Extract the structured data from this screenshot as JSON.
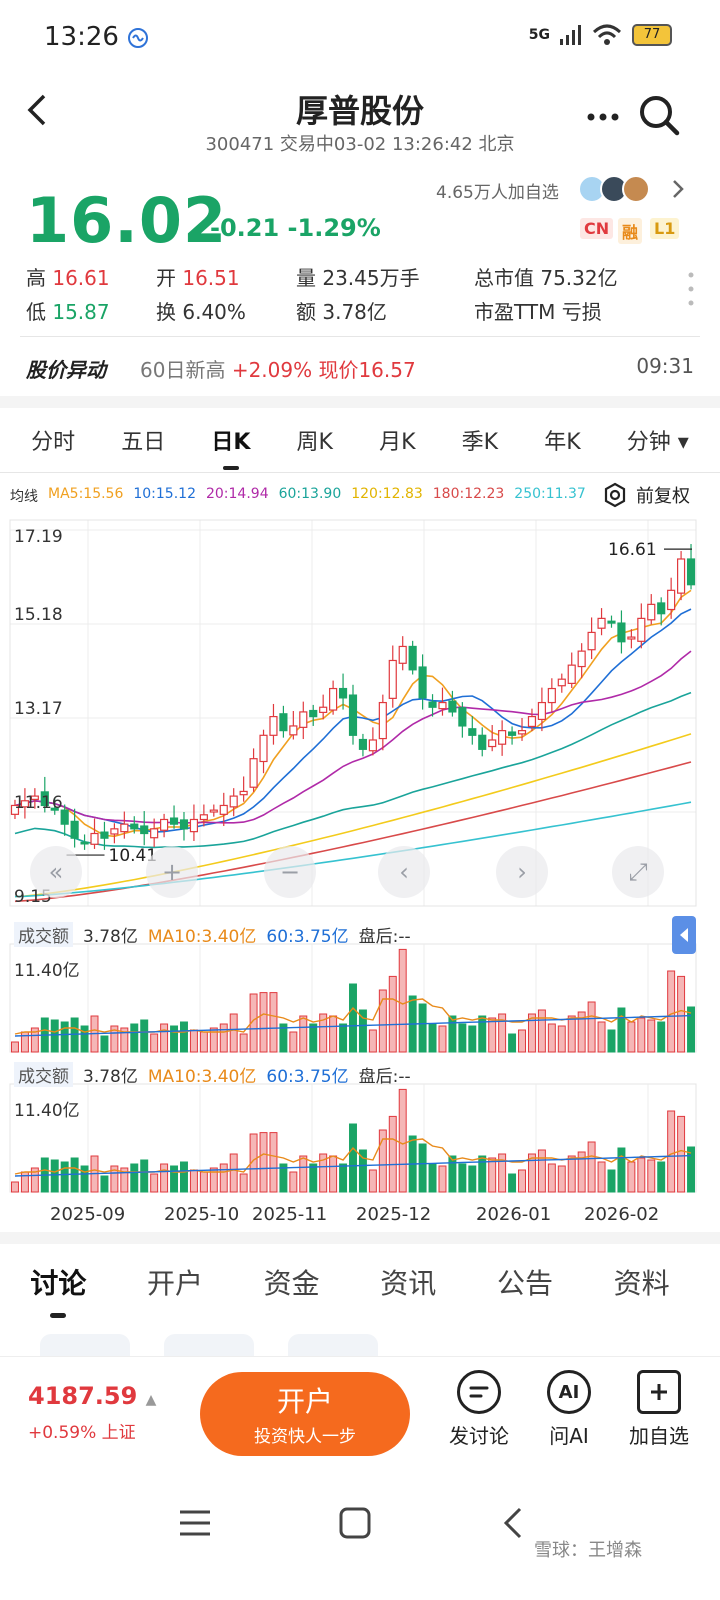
{
  "status_bar": {
    "time": "13:26",
    "signal": "5G",
    "battery": "77"
  },
  "header": {
    "title": "厚普股份",
    "subtitle": "300471 交易中03-02 13:26:42 北京",
    "more_icon": "more-icon",
    "search_icon": "search-icon"
  },
  "quote": {
    "price": "16.02",
    "change": "-0.21",
    "change_pct": "-1.29%",
    "followers": "4.65万人加自选",
    "badges": [
      "CN",
      "融",
      "L1"
    ]
  },
  "stats": {
    "high_label": "高",
    "high": "16.61",
    "open_label": "开",
    "open": "16.51",
    "volume_label": "量",
    "volume": "23.45万手",
    "mcap_label": "总市值",
    "mcap": "75.32亿",
    "low_label": "低",
    "low": "15.87",
    "turnover_label": "换",
    "turnover": "6.40%",
    "amount_label": "额",
    "amount": "3.78亿",
    "pe_label": "市盈TTM",
    "pe": "亏损"
  },
  "notice": {
    "label": "股价异动",
    "text_a": "60日新高 ",
    "text_b": "+2.09% 现价16.57",
    "time": "09:31"
  },
  "chart_tabs": [
    "分时",
    "五日",
    "日K",
    "周K",
    "月K",
    "季K",
    "年K",
    "分钟 ▾"
  ],
  "active_chart_tab": "日K",
  "ma_legend": {
    "label": "均线",
    "ma5": "MA5:15.56",
    "ma10": "10:15.12",
    "ma20": "20:14.94",
    "ma60": "60:13.90",
    "ma120": "120:12.83",
    "ma180": "180:12.23",
    "ma250": "250:11.37"
  },
  "fuquan": "前复权",
  "colors": {
    "up": "#e0393e",
    "down": "#1aa466",
    "ma5": "#f0a020",
    "ma10": "#1f6fd6",
    "ma20": "#b02aa8",
    "ma60": "#1aa49a",
    "ma120": "#f3cb1c",
    "ma180": "#d84a4a",
    "ma250": "#36c2d0"
  },
  "volume_panel": {
    "label": "成交额",
    "value": "3.78亿",
    "ma10": "MA10:3.40亿",
    "ma60": "60:3.75亿",
    "after": "盘后:--",
    "max": "11.40亿"
  },
  "chart_data": {
    "type": "candlestick",
    "y_ticks": [
      "17.19",
      "15.18",
      "13.17",
      "11.16",
      "9.15"
    ],
    "ylim": [
      9.15,
      17.19
    ],
    "x_ticks": [
      "2025-09",
      "2025-10",
      "2025-11",
      "2025-12",
      "2026-01",
      "2026-02"
    ],
    "annotations": {
      "high": "16.61",
      "low": "10.41"
    },
    "series_close_approx": [
      11.3,
      11.4,
      11.5,
      11.3,
      11.2,
      10.9,
      10.6,
      10.5,
      10.7,
      10.6,
      10.8,
      10.9,
      10.8,
      10.7,
      10.8,
      11.0,
      10.9,
      10.8,
      11.0,
      11.1,
      11.2,
      11.3,
      11.5,
      11.6,
      12.3,
      12.8,
      13.2,
      12.9,
      13.0,
      13.3,
      13.2,
      13.4,
      13.8,
      13.6,
      12.8,
      12.5,
      12.7,
      13.5,
      14.4,
      14.7,
      14.2,
      13.6,
      13.4,
      13.5,
      13.3,
      13.0,
      12.8,
      12.5,
      12.7,
      12.9,
      12.8,
      12.9,
      13.2,
      13.5,
      13.8,
      14.0,
      14.3,
      14.6,
      15.0,
      15.3,
      15.2,
      14.8,
      14.9,
      15.3,
      15.6,
      15.4,
      15.9,
      16.57,
      16.02
    ]
  },
  "bottom_tabs": [
    "讨论",
    "开户",
    "资金",
    "资讯",
    "公告",
    "资料"
  ],
  "footer": {
    "index_value": "4187.59",
    "index_change": "+0.59% 上证",
    "open_btn_l1": "开户",
    "open_btn_l2": "投资快人一步",
    "action1": "发讨论",
    "action2": "问AI",
    "action3": "加自选",
    "ai_icon_text": "AI"
  },
  "watermark": "雪球：王增森"
}
